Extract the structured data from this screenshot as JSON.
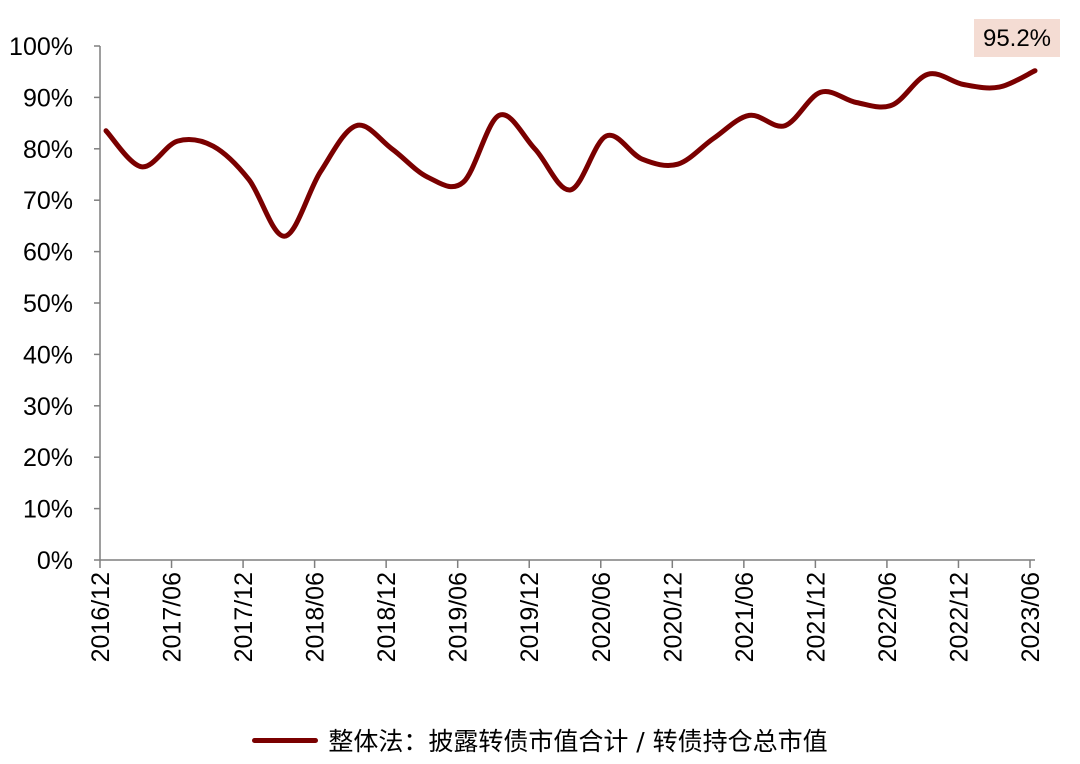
{
  "chart_data": {
    "type": "line",
    "y_ticks": [
      "100%",
      "90%",
      "80%",
      "70%",
      "60%",
      "50%",
      "40%",
      "30%",
      "20%",
      "10%",
      "0%"
    ],
    "x_ticks": [
      "2016/12",
      "2017/06",
      "2017/12",
      "2018/06",
      "2018/12",
      "2019/06",
      "2019/12",
      "2020/06",
      "2020/12",
      "2021/06",
      "2021/12",
      "2022/06",
      "2022/12",
      "2023/06"
    ],
    "ylim": [
      0,
      100
    ],
    "grid": false,
    "legend_position": "bottom",
    "series": [
      {
        "name": "整体法：披露转债市值合计 / 转债持仓总市值",
        "color": "#7a0000",
        "values": [
          83.5,
          76.5,
          81.5,
          80.5,
          74.0,
          63.0,
          75.5,
          84.5,
          80.0,
          74.5,
          73.5,
          86.5,
          80.0,
          72.0,
          82.5,
          78.0,
          77.0,
          82.0,
          86.5,
          84.5,
          91.0,
          89.0,
          88.5,
          94.5,
          92.5,
          92.0,
          95.2
        ]
      }
    ],
    "annotation": {
      "label": "95.2%",
      "value": 95.2,
      "box_color": "#f4dcd3"
    }
  }
}
